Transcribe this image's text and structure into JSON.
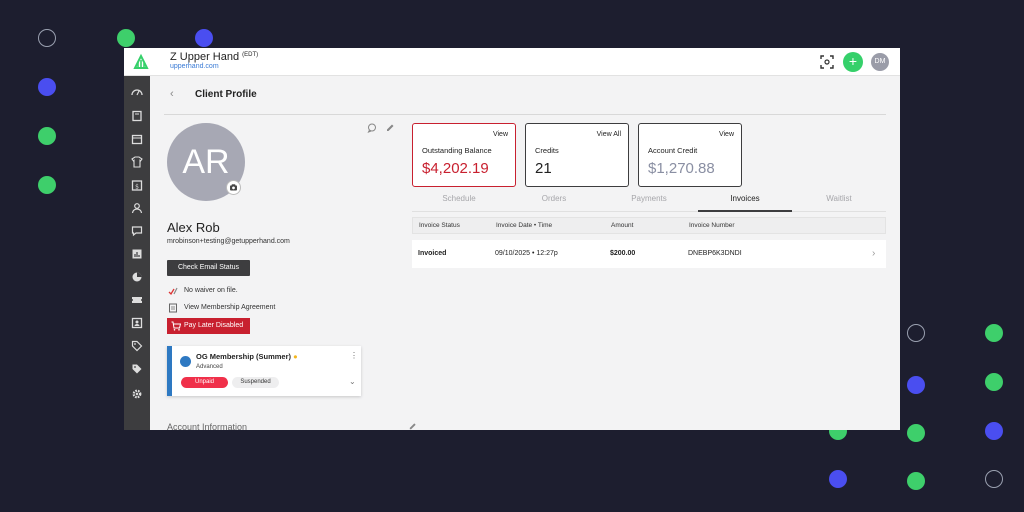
{
  "app": {
    "name": "Z Upper Hand",
    "name_suffix": "(EDT)",
    "url": "upperhand.com",
    "user_initials": "DM",
    "add_label": "+",
    "accent": "#35d06a"
  },
  "page": {
    "back": "‹",
    "title": "Client Profile"
  },
  "sidebar": {
    "items": [
      "dashboard-icon",
      "book-icon",
      "calendar-icon",
      "shirt-icon",
      "calendar-dollar-icon",
      "people-icon",
      "chat-icon",
      "report-icon",
      "chart-icon",
      "ticket-icon",
      "contacts-icon",
      "tag-icon",
      "tags-icon",
      "settings-icon"
    ]
  },
  "client": {
    "initials": "AR",
    "name": "Alex Rob",
    "email": "mrobinson+testing@getupperhand.com",
    "check_email": "Check Email Status",
    "waiver": "No waiver on file.",
    "agreement": "View Membership Agreement",
    "pay_later": "Pay Later Disabled"
  },
  "membership": {
    "title": "OG Membership (Summer)",
    "tier": "Advanced",
    "status_unpaid": "Unpaid",
    "status_suspended": "Suspended",
    "menu": "⋮",
    "expand": "⌄"
  },
  "account_info_label": "Account Information",
  "stats": [
    {
      "action": "View",
      "label": "Outstanding Balance",
      "value": "$4,202.19",
      "color": "#c8202f"
    },
    {
      "action": "View All",
      "label": "Credits",
      "value": "21",
      "color": "#222222"
    },
    {
      "action": "View",
      "label": "Account Credit",
      "value": "$1,270.88",
      "color": "#8a8fa3"
    }
  ],
  "tabs": [
    "Schedule",
    "Orders",
    "Payments",
    "Invoices",
    "Waitlist"
  ],
  "invoices": {
    "columns": [
      "Invoice Status",
      "Invoice Date • Time",
      "Amount",
      "Invoice Number"
    ],
    "rows": [
      {
        "status": "Invoiced",
        "date": "09/10/2025 • 12:27p",
        "amount": "$200.00",
        "number": "DNEBP6K3DNDI",
        "chevron": "›"
      }
    ]
  }
}
